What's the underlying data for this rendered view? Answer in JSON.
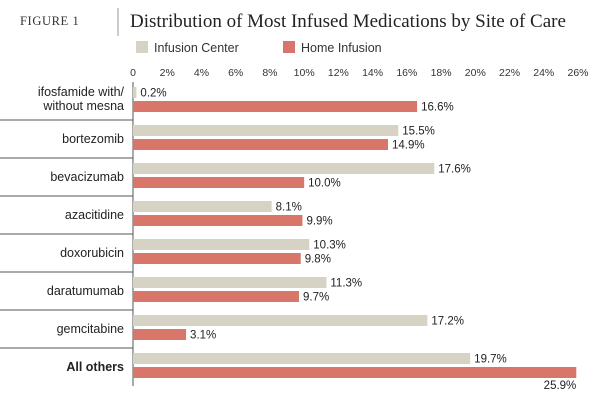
{
  "header": {
    "figure_label": "FIGURE 1",
    "title": "Distribution of Most Infused Medications by Site of Care"
  },
  "chart_data": {
    "type": "bar",
    "orientation": "horizontal",
    "title": "Distribution of Most Infused Medications by Site of Care",
    "xlabel": "",
    "ylabel": "",
    "xlim": [
      0,
      26
    ],
    "ticks": [
      "0",
      "2%",
      "4%",
      "6%",
      "8%",
      "10%",
      "12%",
      "14%",
      "16%",
      "18%",
      "20%",
      "22%",
      "24%",
      "26%"
    ],
    "tick_values": [
      0,
      2,
      4,
      6,
      8,
      10,
      12,
      14,
      16,
      18,
      20,
      22,
      24,
      26
    ],
    "legend_position": "top",
    "grid": false,
    "categories": [
      [
        "ifosfamide with/",
        "without mesna"
      ],
      [
        "bortezomib"
      ],
      [
        "bevacizumab"
      ],
      [
        "azacitidine"
      ],
      [
        "doxorubicin"
      ],
      [
        "daratumumab"
      ],
      [
        "gemcitabine"
      ],
      [
        "All others"
      ]
    ],
    "series": [
      {
        "name": "Infusion Center",
        "color": "#d6d2c4",
        "values": [
          0.2,
          15.5,
          17.6,
          8.1,
          10.3,
          11.3,
          17.2,
          19.7
        ],
        "labels": [
          "0.2%",
          "15.5%",
          "17.6%",
          "8.1%",
          "10.3%",
          "11.3%",
          "17.2%",
          "19.7%"
        ]
      },
      {
        "name": "Home Infusion",
        "color": "#d9766a",
        "values": [
          16.6,
          14.9,
          10.0,
          9.9,
          9.8,
          9.7,
          3.1,
          25.9
        ],
        "labels": [
          "16.6%",
          "14.9%",
          "10.0%",
          "9.9%",
          "9.8%",
          "9.7%",
          "3.1%",
          "25.9%"
        ]
      }
    ]
  }
}
